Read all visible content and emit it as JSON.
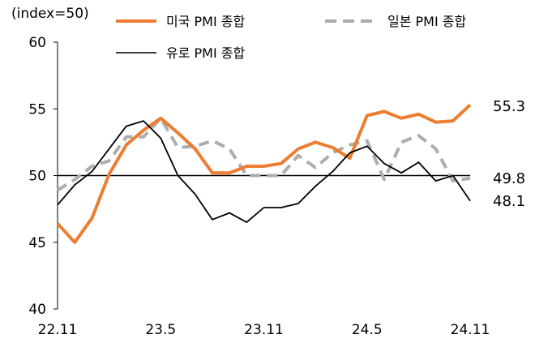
{
  "chart_data": {
    "type": "line",
    "ylabel": "(index=50)",
    "ylim": [
      40,
      60
    ],
    "yticks": [
      "40",
      "45",
      "50",
      "55",
      "60"
    ],
    "x": [
      "22.11",
      "22.12",
      "23.1",
      "23.2",
      "23.3",
      "23.4",
      "23.5",
      "23.6",
      "23.7",
      "23.8",
      "23.9",
      "23.10",
      "23.11",
      "23.12",
      "24.1",
      "24.2",
      "24.3",
      "24.4",
      "24.5",
      "24.6",
      "24.7",
      "24.8",
      "24.9",
      "24.10",
      "24.11"
    ],
    "xtick_labels": [
      "22.11",
      "23.5",
      "23.11",
      "24.5",
      "24.11"
    ],
    "reference_line": 50,
    "series": [
      {
        "name": "미국 PMI 종합",
        "color": "#ED7D31",
        "style": "solid",
        "values": [
          46.4,
          45.0,
          46.8,
          50.1,
          52.3,
          53.4,
          54.3,
          53.2,
          52.0,
          50.2,
          50.2,
          50.7,
          50.7,
          50.9,
          52.0,
          52.5,
          52.1,
          51.3,
          54.5,
          54.8,
          54.3,
          54.6,
          54.0,
          54.1,
          55.3
        ]
      },
      {
        "name": "일본 PMI 종합",
        "color": "#ADADAD",
        "style": "dashed",
        "values": [
          48.9,
          49.7,
          50.7,
          51.1,
          52.9,
          52.9,
          54.3,
          52.1,
          52.2,
          52.6,
          52.0,
          50.0,
          50.0,
          50.0,
          51.5,
          50.6,
          51.7,
          52.3,
          52.6,
          49.7,
          52.5,
          53.0,
          52.0,
          49.6,
          49.8
        ]
      },
      {
        "name": "유로 PMI 종합",
        "color": "#000000",
        "style": "solid",
        "values": [
          47.8,
          49.3,
          50.3,
          52.0,
          53.7,
          54.1,
          52.8,
          50.0,
          48.6,
          46.7,
          47.2,
          46.5,
          47.6,
          47.6,
          47.9,
          49.2,
          50.3,
          51.7,
          52.2,
          50.9,
          50.2,
          51.0,
          49.6,
          50.0,
          48.1
        ]
      }
    ],
    "end_labels": [
      "55.3",
      "49.8",
      "48.1"
    ],
    "legend": "top"
  }
}
